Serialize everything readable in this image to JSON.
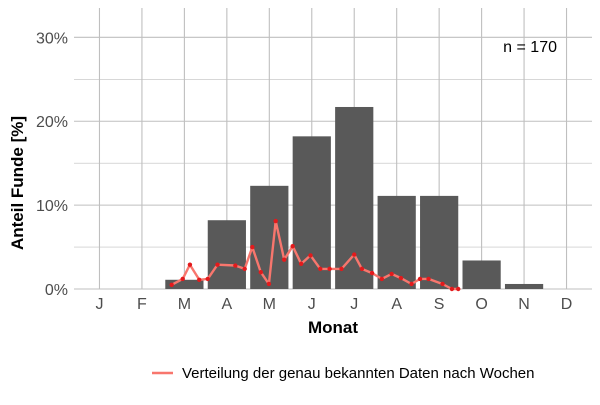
{
  "chart_data": {
    "type": "bar",
    "categories": [
      "J",
      "F",
      "M",
      "A",
      "M",
      "J",
      "J",
      "A",
      "S",
      "O",
      "N",
      "D"
    ],
    "values": [
      0,
      0,
      1.1,
      8.2,
      12.3,
      18.2,
      21.7,
      11.1,
      11.1,
      3.4,
      0.6,
      0
    ],
    "ylabel": "Anteil Funde [%]",
    "xlabel": "Monat",
    "ylim": [
      0,
      33.5
    ],
    "yticks": [
      0,
      10,
      20,
      30
    ],
    "ytick_labels": [
      "0%",
      "10%",
      "20%",
      "30%"
    ],
    "annotation": "n = 170",
    "grid": true,
    "legend_position": "bottom",
    "series": [
      {
        "name": "Verteilung der genau bekannten Daten nach Wochen",
        "type": "line",
        "color": "#f8766d",
        "point_color": "#e31a1c",
        "x": [
          2.7,
          2.96,
          3.13,
          3.35,
          3.55,
          3.78,
          4.2,
          4.42,
          4.6,
          4.8,
          4.99,
          5.15,
          5.35,
          5.55,
          5.75,
          5.97,
          6.2,
          6.42,
          6.7,
          7.0,
          7.18,
          7.42,
          7.65,
          7.88,
          8.1,
          8.35,
          8.55,
          8.75,
          9.08,
          9.3,
          9.45
        ],
        "y": [
          0.5,
          1.2,
          2.9,
          1.1,
          1.2,
          2.9,
          2.8,
          2.4,
          5.0,
          2.0,
          0.6,
          8.1,
          3.5,
          5.1,
          3.0,
          4.0,
          2.4,
          2.4,
          2.4,
          4.1,
          2.4,
          1.9,
          1.2,
          1.8,
          1.3,
          0.6,
          1.2,
          1.2,
          0.6,
          0,
          0
        ]
      }
    ]
  },
  "colors": {
    "bar": "#595959",
    "grid": "#bfbfbf",
    "line": "#f8766d",
    "points": "#e31a1c"
  }
}
